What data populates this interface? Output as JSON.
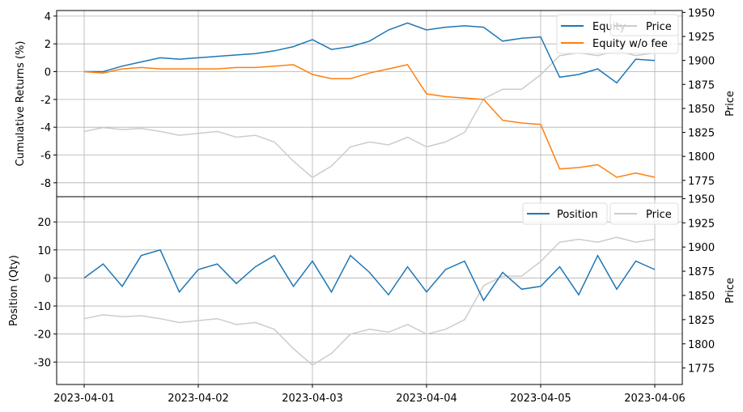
{
  "chart_data": [
    {
      "type": "line",
      "xlabel": "",
      "ylabel": "Cumulative Returns (%)",
      "ylabel_right": "Price",
      "x_ticks": [
        "2023-04-01",
        "2023-04-02",
        "2023-04-03",
        "2023-04-04",
        "2023-04-05",
        "2023-04-06"
      ],
      "x_range": [
        "2023-04-01",
        "2023-04-06"
      ],
      "x_step_hours": 4,
      "ylim": [
        -9,
        4.4
      ],
      "yticks": [
        4,
        2,
        0,
        -2,
        -4,
        -6,
        -8
      ],
      "ylim_right": [
        1758,
        1952
      ],
      "yticks_right": [
        1950,
        1925,
        1900,
        1875,
        1850,
        1825,
        1800,
        1775
      ],
      "grid": true,
      "legend_placement": "top-right",
      "series": [
        {
          "name": "Equity",
          "axis": "left",
          "color": "#1f77b4",
          "values": [
            0,
            0.0,
            0.4,
            0.7,
            1.0,
            0.9,
            1.0,
            1.1,
            1.2,
            1.3,
            1.5,
            1.8,
            2.3,
            1.6,
            1.8,
            2.2,
            3.0,
            3.5,
            3.0,
            3.2,
            3.3,
            3.2,
            2.2,
            2.4,
            2.5,
            -0.4,
            -0.2,
            0.2,
            -0.8,
            0.9,
            0.8
          ]
        },
        {
          "name": "Equity w/o fee",
          "axis": "left",
          "color": "#ff7f0e",
          "values": [
            0,
            -0.1,
            0.2,
            0.3,
            0.2,
            0.2,
            0.2,
            0.2,
            0.3,
            0.3,
            0.4,
            0.5,
            -0.2,
            -0.5,
            -0.5,
            -0.1,
            0.2,
            0.5,
            -1.6,
            -1.8,
            -1.9,
            -2.0,
            -3.5,
            -3.7,
            -3.8,
            -7.0,
            -6.9,
            -6.7,
            -7.6,
            -7.3,
            -7.6
          ]
        },
        {
          "name": "Price",
          "axis": "right",
          "color": "#cccccc",
          "values": [
            1826,
            1830,
            1828,
            1829,
            1826,
            1822,
            1824,
            1826,
            1820,
            1822,
            1815,
            1795,
            1778,
            1790,
            1810,
            1815,
            1812,
            1820,
            1810,
            1815,
            1825,
            1860,
            1870,
            1870,
            1885,
            1905,
            1908,
            1905,
            1910,
            1905,
            1908
          ]
        }
      ]
    },
    {
      "type": "line",
      "xlabel": "",
      "ylabel": "Position (Qty)",
      "ylabel_right": "Price",
      "x_ticks": [
        "2023-04-01",
        "2023-04-02",
        "2023-04-03",
        "2023-04-04",
        "2023-04-05",
        "2023-04-06"
      ],
      "x_range": [
        "2023-04-01",
        "2023-04-06"
      ],
      "x_step_hours": 4,
      "ylim": [
        -38,
        29
      ],
      "yticks": [
        20,
        10,
        0,
        -10,
        -20,
        -30
      ],
      "ylim_right": [
        1758,
        1952
      ],
      "yticks_right": [
        1950,
        1925,
        1900,
        1875,
        1850,
        1825,
        1800,
        1775
      ],
      "grid": true,
      "legend_placement": "top-right",
      "series": [
        {
          "name": "Position",
          "axis": "left",
          "color": "#1f77b4",
          "values": [
            0,
            5,
            -3,
            8,
            10,
            -5,
            3,
            5,
            -2,
            4,
            8,
            -3,
            6,
            -5,
            8,
            2,
            -6,
            4,
            -5,
            3,
            6,
            -8,
            2,
            -4,
            -3,
            4,
            -6,
            8,
            -4,
            6,
            3
          ]
        },
        {
          "name": "Price",
          "axis": "right",
          "color": "#cccccc",
          "values": [
            1826,
            1830,
            1828,
            1829,
            1826,
            1822,
            1824,
            1826,
            1820,
            1822,
            1815,
            1795,
            1778,
            1790,
            1810,
            1815,
            1812,
            1820,
            1810,
            1815,
            1825,
            1860,
            1870,
            1870,
            1885,
            1905,
            1908,
            1905,
            1910,
            1905,
            1908
          ]
        }
      ]
    }
  ]
}
